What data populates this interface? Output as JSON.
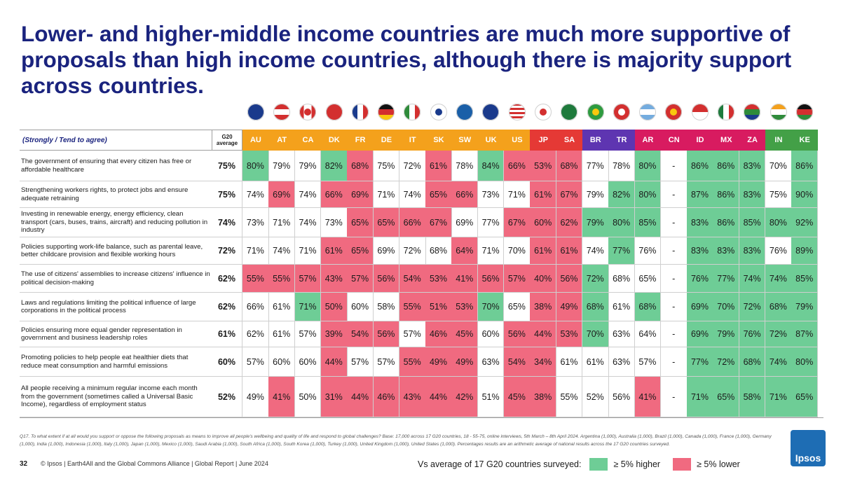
{
  "title": "Lower- and higher-middle income countries are much more supportive of proposals than high income countries, although there is majority support across countries.",
  "table_header": "(Strongly / Tend to agree)",
  "average_header": "G20 average",
  "countries": [
    {
      "code": "AU",
      "flag": "australia-flag"
    },
    {
      "code": "AT",
      "flag": "austria-flag"
    },
    {
      "code": "CA",
      "flag": "canada-flag"
    },
    {
      "code": "DK",
      "flag": "denmark-flag"
    },
    {
      "code": "FR",
      "flag": "france-flag"
    },
    {
      "code": "DE",
      "flag": "germany-flag"
    },
    {
      "code": "IT",
      "flag": "italy-flag"
    },
    {
      "code": "SK",
      "flag": "south-korea-flag"
    },
    {
      "code": "SW",
      "flag": "sweden-flag"
    },
    {
      "code": "UK",
      "flag": "uk-flag"
    },
    {
      "code": "US",
      "flag": "usa-flag"
    },
    {
      "code": "JP",
      "flag": "japan-flag"
    },
    {
      "code": "SA",
      "flag": "saudi-arabia-flag"
    },
    {
      "code": "BR",
      "flag": "brazil-flag"
    },
    {
      "code": "TR",
      "flag": "turkey-flag"
    },
    {
      "code": "AR",
      "flag": "argentina-flag"
    },
    {
      "code": "CN",
      "flag": "china-flag"
    },
    {
      "code": "ID",
      "flag": "indonesia-flag"
    },
    {
      "code": "MX",
      "flag": "mexico-flag"
    },
    {
      "code": "ZA",
      "flag": "south-africa-flag"
    },
    {
      "code": "IN",
      "flag": "india-flag"
    },
    {
      "code": "KE",
      "flag": "kenya-flag"
    }
  ],
  "group_colors": [
    "#f4a11c",
    "#f4a11c",
    "#f4a11c",
    "#f4a11c",
    "#f4a11c",
    "#f4a11c",
    "#f4a11c",
    "#f4a11c",
    "#f4a11c",
    "#f4a11c",
    "#f4a11c",
    "#e53935",
    "#e53935",
    "#5e35b1",
    "#5e35b1",
    "#d81b60",
    "#d81b60",
    "#d81b60",
    "#d81b60",
    "#d81b60",
    "#43a047",
    "#43a047"
  ],
  "colors": {
    "higher": "#6ecd96",
    "lower": "#f06a80",
    "title": "#1a237e",
    "brand": "#1e6db4"
  },
  "chart_data": {
    "type": "table",
    "title": "Lower- and higher-middle income countries are much more supportive of proposals than high income countries, although there is majority support across countries.",
    "columns": [
      "G20 average",
      "AU",
      "AT",
      "CA",
      "DK",
      "FR",
      "DE",
      "IT",
      "SK",
      "SW",
      "UK",
      "US",
      "JP",
      "SA",
      "BR",
      "TR",
      "AR",
      "CN",
      "ID",
      "MX",
      "ZA",
      "IN",
      "KE"
    ],
    "rows": [
      {
        "label": "The government of ensuring that every citizen has free or affordable healthcare",
        "avg": "75%",
        "values": [
          "80%",
          "79%",
          "79%",
          "82%",
          "68%",
          "75%",
          "72%",
          "61%",
          "78%",
          "84%",
          "66%",
          "53%",
          "68%",
          "77%",
          "78%",
          "80%",
          "-",
          "86%",
          "86%",
          "83%",
          "70%",
          "86%"
        ],
        "flags": [
          "h",
          "",
          "",
          "h",
          "l",
          "",
          "",
          "l",
          "",
          "h",
          "l",
          "l",
          "l",
          "",
          "",
          "h",
          "",
          "h",
          "h",
          "h",
          "",
          "h"
        ]
      },
      {
        "label": "Strengthening workers rights, to protect jobs and ensure adequate retraining",
        "avg": "75%",
        "values": [
          "74%",
          "69%",
          "74%",
          "66%",
          "69%",
          "71%",
          "74%",
          "65%",
          "66%",
          "73%",
          "71%",
          "61%",
          "67%",
          "79%",
          "82%",
          "80%",
          "-",
          "87%",
          "86%",
          "83%",
          "75%",
          "90%"
        ],
        "flags": [
          "",
          "l",
          "",
          "l",
          "l",
          "",
          "",
          "l",
          "l",
          "",
          "",
          "l",
          "l",
          "",
          "h",
          "h",
          "",
          "h",
          "h",
          "h",
          "",
          "h"
        ]
      },
      {
        "label": "Investing in renewable energy, energy efficiency, clean transport (cars, buses, trains, aircraft) and reducing pollution in industry",
        "avg": "74%",
        "values": [
          "73%",
          "71%",
          "74%",
          "73%",
          "65%",
          "65%",
          "66%",
          "67%",
          "69%",
          "77%",
          "67%",
          "60%",
          "62%",
          "79%",
          "80%",
          "85%",
          "-",
          "83%",
          "86%",
          "85%",
          "80%",
          "92%"
        ],
        "flags": [
          "",
          "",
          "",
          "",
          "l",
          "l",
          "l",
          "l",
          "",
          "",
          "l",
          "l",
          "l",
          "h",
          "h",
          "h",
          "",
          "h",
          "h",
          "h",
          "h",
          "h"
        ]
      },
      {
        "label": "Policies supporting work-life balance, such as parental leave, better childcare provision and flexible working hours",
        "avg": "72%",
        "values": [
          "71%",
          "74%",
          "71%",
          "61%",
          "65%",
          "69%",
          "72%",
          "68%",
          "64%",
          "71%",
          "70%",
          "61%",
          "61%",
          "74%",
          "77%",
          "76%",
          "-",
          "83%",
          "83%",
          "83%",
          "76%",
          "89%"
        ],
        "flags": [
          "",
          "",
          "",
          "l",
          "l",
          "",
          "",
          "",
          "l",
          "",
          "",
          "l",
          "l",
          "",
          "h",
          "",
          "",
          "h",
          "h",
          "h",
          "",
          "h"
        ]
      },
      {
        "label": "The use of citizens' assemblies to increase citizens' influence in political decision-making",
        "avg": "62%",
        "values": [
          "55%",
          "55%",
          "57%",
          "43%",
          "57%",
          "56%",
          "54%",
          "53%",
          "41%",
          "56%",
          "57%",
          "40%",
          "56%",
          "72%",
          "68%",
          "65%",
          "-",
          "76%",
          "77%",
          "74%",
          "74%",
          "85%"
        ],
        "flags": [
          "l",
          "l",
          "l",
          "l",
          "l",
          "l",
          "l",
          "l",
          "l",
          "l",
          "l",
          "l",
          "l",
          "h",
          "",
          "",
          "",
          "h",
          "h",
          "h",
          "h",
          "h"
        ]
      },
      {
        "label": "Laws and regulations limiting the political influence of large corporations in the political process",
        "avg": "62%",
        "values": [
          "66%",
          "61%",
          "71%",
          "50%",
          "60%",
          "58%",
          "55%",
          "51%",
          "53%",
          "70%",
          "65%",
          "38%",
          "49%",
          "68%",
          "61%",
          "68%",
          "-",
          "69%",
          "70%",
          "72%",
          "68%",
          "79%"
        ],
        "flags": [
          "",
          "",
          "h",
          "l",
          "",
          "",
          "l",
          "l",
          "l",
          "h",
          "",
          "l",
          "l",
          "h",
          "",
          "h",
          "",
          "h",
          "h",
          "h",
          "h",
          "h"
        ]
      },
      {
        "label": "Policies ensuring more equal gender representation in government and business leadership roles",
        "avg": "61%",
        "values": [
          "62%",
          "61%",
          "57%",
          "39%",
          "54%",
          "56%",
          "57%",
          "46%",
          "45%",
          "60%",
          "56%",
          "44%",
          "53%",
          "70%",
          "63%",
          "64%",
          "-",
          "69%",
          "79%",
          "76%",
          "72%",
          "87%"
        ],
        "flags": [
          "",
          "",
          "",
          "l",
          "l",
          "l",
          "",
          "l",
          "l",
          "",
          "l",
          "l",
          "l",
          "h",
          "",
          "",
          "",
          "h",
          "h",
          "h",
          "h",
          "h"
        ]
      },
      {
        "label": "Promoting policies to help people eat healthier diets that reduce meat consumption and harmful emissions",
        "avg": "60%",
        "values": [
          "57%",
          "60%",
          "60%",
          "44%",
          "57%",
          "57%",
          "55%",
          "49%",
          "49%",
          "63%",
          "54%",
          "34%",
          "61%",
          "61%",
          "63%",
          "57%",
          "-",
          "77%",
          "72%",
          "68%",
          "74%",
          "80%"
        ],
        "flags": [
          "",
          "",
          "",
          "l",
          "",
          "",
          "l",
          "l",
          "l",
          "",
          "l",
          "l",
          "",
          "",
          "",
          "",
          "",
          "h",
          "h",
          "h",
          "h",
          "h"
        ]
      },
      {
        "label": "All people receiving a minimum regular income each month from the government (sometimes called a Universal Basic Income), regardless of employment status",
        "avg": "52%",
        "values": [
          "49%",
          "41%",
          "50%",
          "31%",
          "44%",
          "46%",
          "43%",
          "44%",
          "42%",
          "51%",
          "45%",
          "38%",
          "55%",
          "52%",
          "56%",
          "41%",
          "-",
          "71%",
          "65%",
          "58%",
          "71%",
          "65%"
        ],
        "flags": [
          "",
          "l",
          "",
          "l",
          "l",
          "l",
          "l",
          "l",
          "l",
          "",
          "l",
          "l",
          "",
          "",
          "",
          "l",
          "",
          "h",
          "h",
          "h",
          "h",
          "h"
        ]
      }
    ]
  },
  "footnote": "Q17. To what extent if at all would you support or oppose the following proposals as means to improve all people's wellbeing and quality of life and respond to global challenges? Base: 17,000 across 17 G20 countries, 18 - 55-75, online interviews, 5th March – 8th April 2024. Argentina (1,000), Australia (1,000), Brazil (1,000), Canada (1,000), France (1,000), Germany (1,000), India (1,000), Indonesia (1,000), Italy (1,000), Japan (1,000), Mexico (1,000), Saudi Arabia (1,000), South Africa (1,000), South Korea (1,000), Turkey (1,000), United Kingdom (1,000), United States (1,000). Percentages results are an arithmetic average of national results across the 17 G20 countries surveyed.",
  "page_number": "32",
  "credit": "© Ipsos | Earth4All and the Global Commons Alliance | Global Report | June 2024",
  "legend": {
    "label": "Vs average of 17 G20 countries surveyed:",
    "higher": "≥ 5% higher",
    "lower": "≥ 5% lower"
  },
  "logo_text": "Ipsos"
}
